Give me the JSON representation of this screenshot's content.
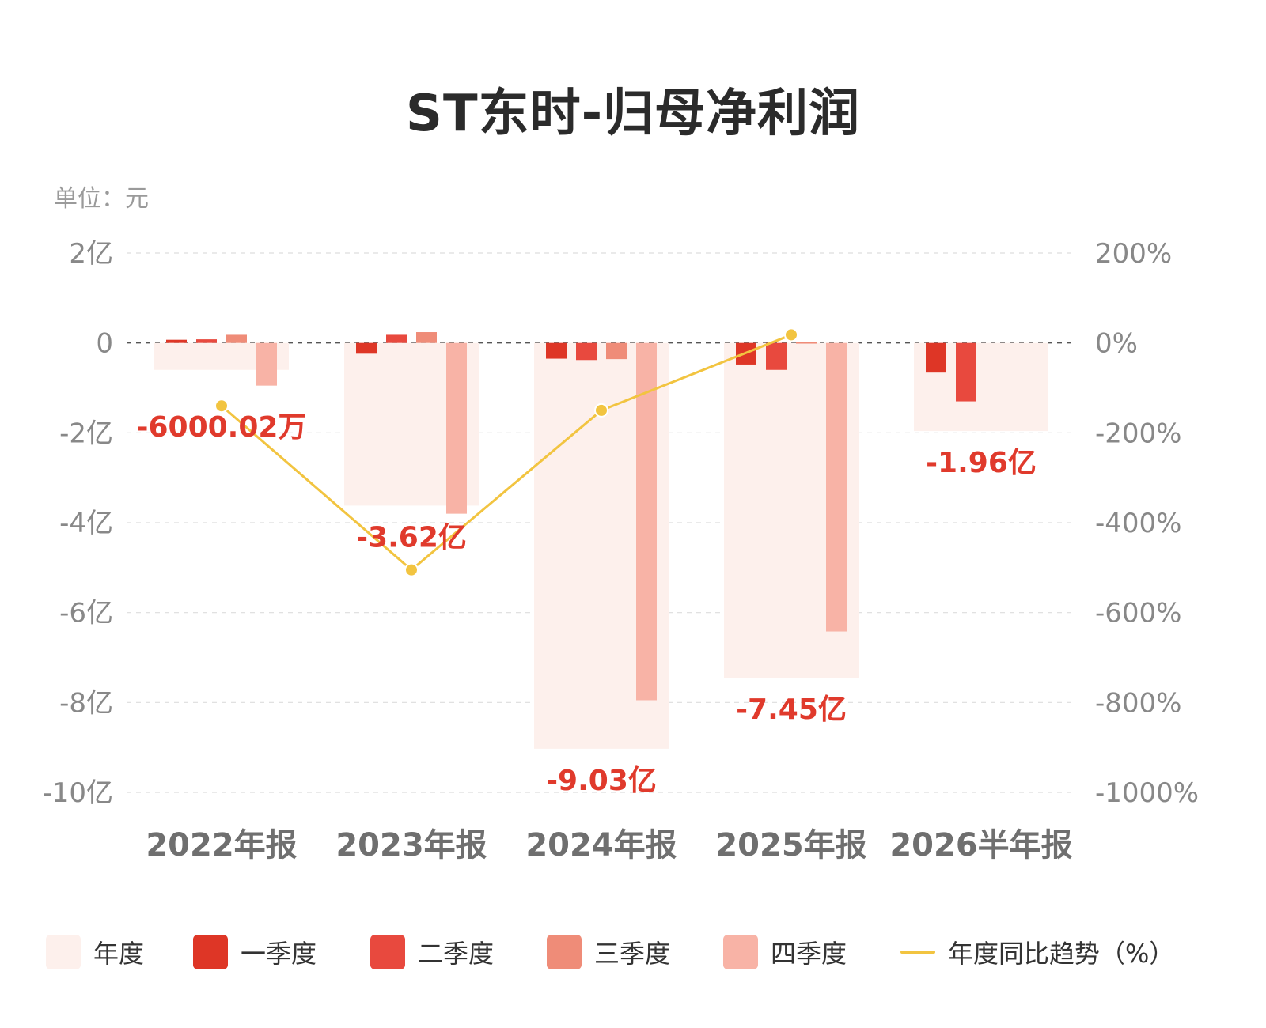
{
  "title": "ST东时-归母净利润",
  "unit_label": "单位：元",
  "colors": {
    "annual": "#fdf0ec",
    "q1": "#de3626",
    "q2": "#e8493e",
    "q3": "#ef8c78",
    "q4": "#f8b3a6",
    "trend": "#f2c440",
    "value_label": "#e03a2c",
    "axis_text": "#888888",
    "category_text": "#6f6f6f",
    "grid": "#dddddd"
  },
  "legend": [
    {
      "label": "年度",
      "key": "annual",
      "kind": "box"
    },
    {
      "label": "一季度",
      "key": "q1",
      "kind": "box"
    },
    {
      "label": "二季度",
      "key": "q2",
      "kind": "box"
    },
    {
      "label": "三季度",
      "key": "q3",
      "kind": "box"
    },
    {
      "label": "四季度",
      "key": "q4",
      "kind": "box"
    },
    {
      "label": "年度同比趋势（%）",
      "key": "trend",
      "kind": "line"
    }
  ],
  "chart_data": {
    "type": "bar",
    "categories": [
      "2022年报",
      "2023年报",
      "2024年报",
      "2025年报",
      "2026半年报"
    ],
    "y_left": {
      "ylim": [
        -10,
        2
      ],
      "ticks": [
        2,
        0,
        -2,
        -4,
        -6,
        -8,
        -10
      ],
      "tick_labels": [
        "2亿",
        "0",
        "-2亿",
        "-4亿",
        "-6亿",
        "-8亿",
        "-10亿"
      ]
    },
    "y_right": {
      "ylim": [
        -1000,
        200
      ],
      "ticks": [
        200,
        0,
        -200,
        -400,
        -600,
        -800,
        -1000
      ],
      "tick_labels": [
        "200%",
        "0%",
        "-200%",
        "-400%",
        "-600%",
        "-800%",
        "-1000%"
      ]
    },
    "annual": {
      "values": [
        -0.6,
        -3.62,
        -9.03,
        -7.45,
        -1.96
      ],
      "labels": [
        "-6000.02万",
        "-3.62亿",
        "-9.03亿",
        "-7.45亿",
        "-1.96亿"
      ]
    },
    "series": [
      {
        "name": "一季度",
        "values": [
          0.07,
          -0.24,
          -0.35,
          -0.48,
          -0.66
        ]
      },
      {
        "name": "二季度",
        "values": [
          0.08,
          0.18,
          -0.38,
          -0.6,
          -1.3
        ]
      },
      {
        "name": "三季度",
        "values": [
          0.18,
          0.24,
          -0.36,
          0.02,
          null
        ]
      },
      {
        "name": "四季度",
        "values": [
          -0.95,
          -3.8,
          -7.95,
          -6.42,
          null
        ]
      }
    ],
    "trend": {
      "name": "年度同比趋势（%）",
      "values": [
        -140,
        -505,
        -150,
        18,
        null
      ]
    }
  }
}
